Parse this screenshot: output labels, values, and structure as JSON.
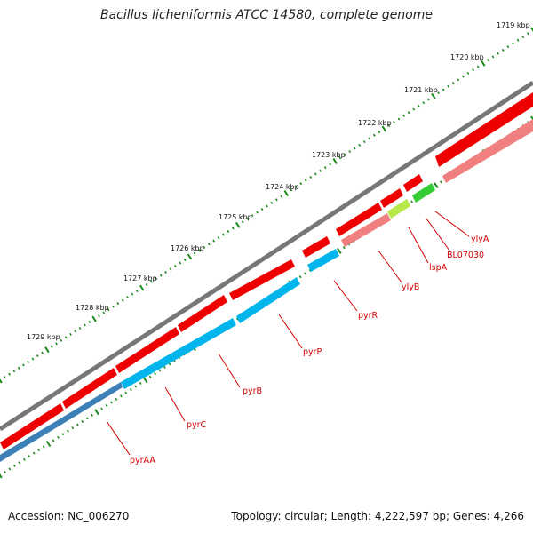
{
  "title": "Bacillus licheniformis ATCC 14580, complete genome",
  "footer": {
    "accession": "Accession: NC_006270",
    "summary": "Topology: circular; Length: 4,222,597 bp; Genes: 4,266"
  },
  "scale_labels": [
    "1719 kbp",
    "1720 kbp",
    "1721 kbp",
    "1722 kbp",
    "1723 kbp",
    "1724 kbp",
    "1725 kbp",
    "1726 kbp",
    "1727 kbp",
    "1728 kbp",
    "1729 kbp"
  ],
  "genes": [
    {
      "name": "ylyA",
      "color": "#ee0000"
    },
    {
      "name": "BL07030",
      "color": "#ee0000"
    },
    {
      "name": "lspA",
      "color": "#ee0000"
    },
    {
      "name": "ylyB",
      "color": "#ee0000"
    },
    {
      "name": "pyrR",
      "color": "#ee0000"
    },
    {
      "name": "pyrP",
      "color": "#ee0000"
    },
    {
      "name": "pyrB",
      "color": "#ee0000"
    },
    {
      "name": "pyrC",
      "color": "#ee0000"
    },
    {
      "name": "pyrAA",
      "color": "#ee0000"
    }
  ],
  "colors": {
    "cds": "#ee0000",
    "rrna_light": "#f08080",
    "cog_blue": "#00b4ec",
    "cog_green": "#33cc33",
    "backbone": "#808080",
    "ticks": "#1a8a1a"
  }
}
